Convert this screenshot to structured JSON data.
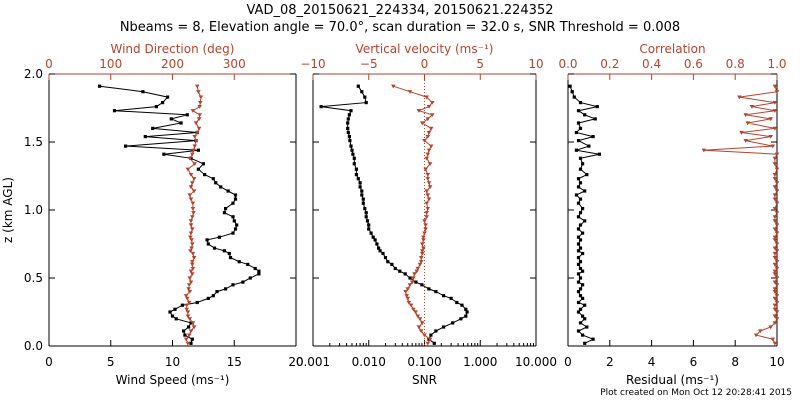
{
  "title_line1": "VAD_08_20150621_224334, 20150621.224352",
  "title_line2": "Nbeams = 8, Elevation angle = 70.0°, scan duration = 32.0 s, SNR Threshold = 0.008",
  "footer": "Plot created on Mon Oct 12 20:28:41 2015",
  "colors": {
    "primary": "#000000",
    "secondary": "#b5442c"
  },
  "chart_data": [
    {
      "type": "line",
      "ylabel": "z (km AGL)",
      "ylim": [
        0,
        2
      ],
      "yticks": [
        "0.0",
        "0.5",
        "1.0",
        "1.5",
        "2.0"
      ],
      "bottom_axis": {
        "label": "Wind Speed (ms⁻¹)",
        "scale": "linear",
        "lim": [
          0,
          20
        ],
        "ticks": [
          "0",
          "5",
          "10",
          "15",
          "20"
        ]
      },
      "top_axis": {
        "label": "Wind Direction (deg)",
        "scale": "linear",
        "lim": [
          0,
          400
        ],
        "ticks": [
          "0",
          "100",
          "200",
          "300"
        ]
      },
      "series": [
        {
          "axis": "bottom",
          "marker": "square",
          "x": [
            11.5,
            11.6,
            11.0,
            10.9,
            11.3,
            11.5,
            10.3,
            10.0,
            9.8,
            10.2,
            10.8,
            12.0,
            12.9,
            13.3,
            13.6,
            14.3,
            14.9,
            15.7,
            16.3,
            17.0,
            17.0,
            16.7,
            16.1,
            15.4,
            14.7,
            14.6,
            14.2,
            13.4,
            12.9,
            12.8,
            13.8,
            14.9,
            15.1,
            15.2,
            15.0,
            14.9,
            14.2,
            14.3,
            14.9,
            15.1,
            15.1,
            14.5,
            13.9,
            13.5,
            13.3,
            12.6,
            12.1,
            12.5,
            11.5,
            9.3,
            12.1,
            6.2,
            11.9,
            7.8,
            12.0,
            8.4,
            10.7,
            9.9,
            11.2,
            5.3,
            8.7,
            9.2,
            9.6,
            7.6,
            4.1
          ],
          "y": [
            0.02,
            0.05,
            0.08,
            0.11,
            0.14,
            0.17,
            0.2,
            0.22,
            0.25,
            0.27,
            0.3,
            0.32,
            0.35,
            0.37,
            0.4,
            0.42,
            0.45,
            0.47,
            0.5,
            0.53,
            0.55,
            0.57,
            0.6,
            0.62,
            0.65,
            0.68,
            0.7,
            0.72,
            0.75,
            0.78,
            0.8,
            0.83,
            0.86,
            0.89,
            0.92,
            0.95,
            0.98,
            1.01,
            1.05,
            1.08,
            1.11,
            1.14,
            1.17,
            1.2,
            1.23,
            1.26,
            1.3,
            1.34,
            1.38,
            1.41,
            1.44,
            1.47,
            1.51,
            1.54,
            1.57,
            1.6,
            1.64,
            1.67,
            1.7,
            1.73,
            1.76,
            1.79,
            1.83,
            1.87,
            1.91
          ]
        },
        {
          "axis": "top",
          "marker": "triangle-down",
          "x": [
            225,
            222,
            227,
            230,
            235,
            233,
            228,
            225,
            225,
            223,
            223,
            227,
            224,
            222,
            228,
            226,
            227,
            230,
            228,
            232,
            230,
            233,
            232,
            232,
            235,
            233,
            229,
            231,
            232,
            231,
            229,
            230,
            232,
            230,
            230,
            232,
            234,
            233,
            233,
            230,
            228,
            235,
            230,
            232,
            235,
            230,
            225,
            236,
            228,
            232,
            234,
            236,
            238,
            236,
            240,
            243,
            238,
            243,
            244,
            233,
            244,
            245,
            246,
            242,
            240
          ],
          "y": [
            0.02,
            0.05,
            0.08,
            0.11,
            0.14,
            0.17,
            0.2,
            0.22,
            0.25,
            0.27,
            0.3,
            0.32,
            0.35,
            0.37,
            0.4,
            0.42,
            0.45,
            0.47,
            0.5,
            0.53,
            0.55,
            0.57,
            0.6,
            0.62,
            0.65,
            0.68,
            0.7,
            0.72,
            0.75,
            0.78,
            0.8,
            0.83,
            0.86,
            0.89,
            0.92,
            0.95,
            0.98,
            1.01,
            1.05,
            1.08,
            1.11,
            1.14,
            1.17,
            1.2,
            1.23,
            1.26,
            1.3,
            1.34,
            1.38,
            1.41,
            1.44,
            1.47,
            1.51,
            1.54,
            1.57,
            1.6,
            1.64,
            1.67,
            1.7,
            1.73,
            1.76,
            1.79,
            1.83,
            1.87,
            1.91
          ]
        }
      ]
    },
    {
      "type": "line",
      "ylim": [
        0,
        2
      ],
      "bottom_axis": {
        "label": "SNR",
        "scale": "log",
        "lim": [
          0.001,
          10
        ],
        "ticks": [
          "0.001",
          "0.010",
          "0.100",
          "1.000",
          "10.000"
        ]
      },
      "top_axis": {
        "label": "Vertical velocity (ms⁻¹)",
        "scale": "linear",
        "lim": [
          -10,
          10
        ],
        "ticks": [
          "−10",
          "−5",
          "0",
          "5",
          "10"
        ]
      },
      "zero_line": {
        "axis": "top",
        "value": 0
      },
      "series": [
        {
          "axis": "bottom",
          "marker": "square",
          "x": [
            0.15,
            0.12,
            0.13,
            0.16,
            0.22,
            0.32,
            0.45,
            0.55,
            0.58,
            0.55,
            0.47,
            0.38,
            0.3,
            0.22,
            0.16,
            0.12,
            0.09,
            0.07,
            0.055,
            0.045,
            0.036,
            0.03,
            0.026,
            0.022,
            0.02,
            0.018,
            0.016,
            0.015,
            0.014,
            0.013,
            0.012,
            0.011,
            0.01,
            0.01,
            0.0095,
            0.009,
            0.009,
            0.0085,
            0.008,
            0.008,
            0.0075,
            0.0075,
            0.007,
            0.007,
            0.0065,
            0.006,
            0.006,
            0.0055,
            0.0055,
            0.0052,
            0.005,
            0.0048,
            0.0046,
            0.0045,
            0.0043,
            0.0042,
            0.0042,
            0.0043,
            0.0045,
            0.0048,
            0.0014,
            0.009,
            0.0085,
            0.0075,
            0.0065
          ],
          "y": [
            0.02,
            0.05,
            0.08,
            0.11,
            0.14,
            0.17,
            0.2,
            0.22,
            0.25,
            0.27,
            0.3,
            0.32,
            0.35,
            0.37,
            0.4,
            0.42,
            0.45,
            0.47,
            0.5,
            0.53,
            0.55,
            0.57,
            0.6,
            0.62,
            0.65,
            0.68,
            0.7,
            0.72,
            0.75,
            0.78,
            0.8,
            0.83,
            0.86,
            0.89,
            0.92,
            0.95,
            0.98,
            1.01,
            1.05,
            1.08,
            1.11,
            1.14,
            1.17,
            1.2,
            1.23,
            1.26,
            1.3,
            1.34,
            1.38,
            1.41,
            1.44,
            1.47,
            1.51,
            1.54,
            1.57,
            1.6,
            1.64,
            1.67,
            1.7,
            1.73,
            1.76,
            1.79,
            1.83,
            1.87,
            1.91
          ]
        },
        {
          "axis": "top",
          "marker": "triangle-down",
          "x": [
            0.3,
            0.5,
            0.0,
            -0.3,
            -0.5,
            -0.2,
            -0.4,
            -0.6,
            -0.8,
            -1.0,
            -1.2,
            -1.4,
            -1.5,
            -1.6,
            -1.7,
            -1.5,
            -1.3,
            -1.1,
            -1.0,
            -0.9,
            -0.7,
            -0.6,
            -0.4,
            -0.3,
            -0.3,
            -0.2,
            -0.2,
            -0.1,
            -0.2,
            -0.1,
            -0.1,
            0.0,
            0.1,
            0.1,
            0.0,
            0.2,
            0.2,
            0.3,
            0.2,
            0.4,
            0.3,
            0.2,
            0.5,
            0.4,
            0.3,
            0.3,
            0.1,
            0.5,
            0.2,
            0.3,
            0.4,
            0.6,
            0.0,
            0.3,
            0.4,
            0.6,
            -0.2,
            0.3,
            0.7,
            -0.5,
            0.4,
            0.7,
            0.2,
            -1.3,
            -2.8
          ],
          "y": [
            0.02,
            0.05,
            0.08,
            0.11,
            0.14,
            0.17,
            0.2,
            0.22,
            0.25,
            0.27,
            0.3,
            0.32,
            0.35,
            0.37,
            0.4,
            0.42,
            0.45,
            0.47,
            0.5,
            0.53,
            0.55,
            0.57,
            0.6,
            0.62,
            0.65,
            0.68,
            0.7,
            0.72,
            0.75,
            0.78,
            0.8,
            0.83,
            0.86,
            0.89,
            0.92,
            0.95,
            0.98,
            1.01,
            1.05,
            1.08,
            1.11,
            1.14,
            1.17,
            1.2,
            1.23,
            1.26,
            1.3,
            1.34,
            1.38,
            1.41,
            1.44,
            1.47,
            1.51,
            1.54,
            1.57,
            1.6,
            1.64,
            1.67,
            1.7,
            1.73,
            1.76,
            1.79,
            1.83,
            1.87,
            1.91
          ]
        }
      ]
    },
    {
      "type": "line",
      "ylim": [
        0,
        2
      ],
      "bottom_axis": {
        "label": "Residual (ms⁻¹)",
        "scale": "linear",
        "lim": [
          0,
          10
        ],
        "ticks": [
          "0",
          "2",
          "4",
          "6",
          "8",
          "10"
        ]
      },
      "top_axis": {
        "label": "Correlation",
        "scale": "linear",
        "lim": [
          0,
          1
        ],
        "ticks": [
          "0.0",
          "0.2",
          "0.4",
          "0.6",
          "0.8",
          "1.0"
        ]
      },
      "series": [
        {
          "axis": "bottom",
          "marker": "square",
          "x": [
            0.8,
            1.2,
            0.7,
            0.5,
            0.9,
            0.6,
            0.8,
            0.7,
            0.5,
            0.6,
            0.8,
            0.5,
            0.7,
            0.6,
            0.5,
            0.6,
            0.7,
            0.5,
            0.6,
            0.5,
            0.7,
            0.6,
            0.5,
            0.6,
            0.5,
            0.7,
            0.5,
            0.6,
            0.5,
            0.6,
            0.5,
            0.7,
            0.5,
            0.6,
            0.8,
            0.5,
            0.6,
            0.7,
            0.5,
            0.6,
            0.4,
            0.8,
            0.5,
            0.6,
            0.5,
            0.9,
            0.6,
            0.7,
            0.6,
            1.5,
            0.4,
            1.0,
            0.5,
            1.2,
            0.4,
            0.6,
            0.5,
            1.3,
            0.8,
            0.5,
            1.4,
            0.6,
            0.3,
            0.2,
            0.1
          ],
          "y": [
            0.02,
            0.05,
            0.08,
            0.11,
            0.14,
            0.17,
            0.2,
            0.22,
            0.25,
            0.27,
            0.3,
            0.32,
            0.35,
            0.37,
            0.4,
            0.42,
            0.45,
            0.47,
            0.5,
            0.53,
            0.55,
            0.57,
            0.6,
            0.62,
            0.65,
            0.68,
            0.7,
            0.72,
            0.75,
            0.78,
            0.8,
            0.83,
            0.86,
            0.89,
            0.92,
            0.95,
            0.98,
            1.01,
            1.05,
            1.08,
            1.11,
            1.14,
            1.17,
            1.2,
            1.23,
            1.26,
            1.3,
            1.34,
            1.38,
            1.41,
            1.44,
            1.47,
            1.51,
            1.54,
            1.57,
            1.6,
            1.64,
            1.67,
            1.7,
            1.73,
            1.76,
            1.79,
            1.83,
            1.87,
            1.91
          ]
        },
        {
          "axis": "top",
          "marker": "triangle-down",
          "x": [
            0.99,
            0.98,
            0.9,
            0.92,
            0.97,
            0.99,
            1.0,
            0.99,
            1.0,
            0.99,
            0.99,
            1.0,
            0.99,
            1.0,
            0.99,
            0.99,
            1.0,
            0.99,
            1.0,
            0.99,
            0.99,
            1.0,
            0.99,
            1.0,
            0.99,
            0.99,
            1.0,
            0.99,
            1.0,
            0.99,
            0.99,
            1.0,
            0.99,
            1.0,
            0.99,
            0.99,
            1.0,
            0.99,
            1.0,
            0.99,
            0.99,
            1.0,
            0.99,
            1.0,
            0.99,
            0.99,
            1.0,
            0.99,
            0.99,
            1.0,
            0.65,
            0.98,
            0.85,
            0.97,
            0.83,
            0.99,
            0.86,
            0.97,
            0.85,
            0.99,
            0.88,
            0.99,
            0.82,
            1.0,
            0.99
          ],
          "y": [
            0.02,
            0.05,
            0.08,
            0.11,
            0.14,
            0.17,
            0.2,
            0.22,
            0.25,
            0.27,
            0.3,
            0.32,
            0.35,
            0.37,
            0.4,
            0.42,
            0.45,
            0.47,
            0.5,
            0.53,
            0.55,
            0.57,
            0.6,
            0.62,
            0.65,
            0.68,
            0.7,
            0.72,
            0.75,
            0.78,
            0.8,
            0.83,
            0.86,
            0.89,
            0.92,
            0.95,
            0.98,
            1.01,
            1.05,
            1.08,
            1.11,
            1.14,
            1.17,
            1.2,
            1.23,
            1.26,
            1.3,
            1.34,
            1.38,
            1.41,
            1.44,
            1.47,
            1.51,
            1.54,
            1.57,
            1.6,
            1.64,
            1.67,
            1.7,
            1.73,
            1.76,
            1.79,
            1.83,
            1.87,
            1.91
          ]
        }
      ]
    }
  ]
}
